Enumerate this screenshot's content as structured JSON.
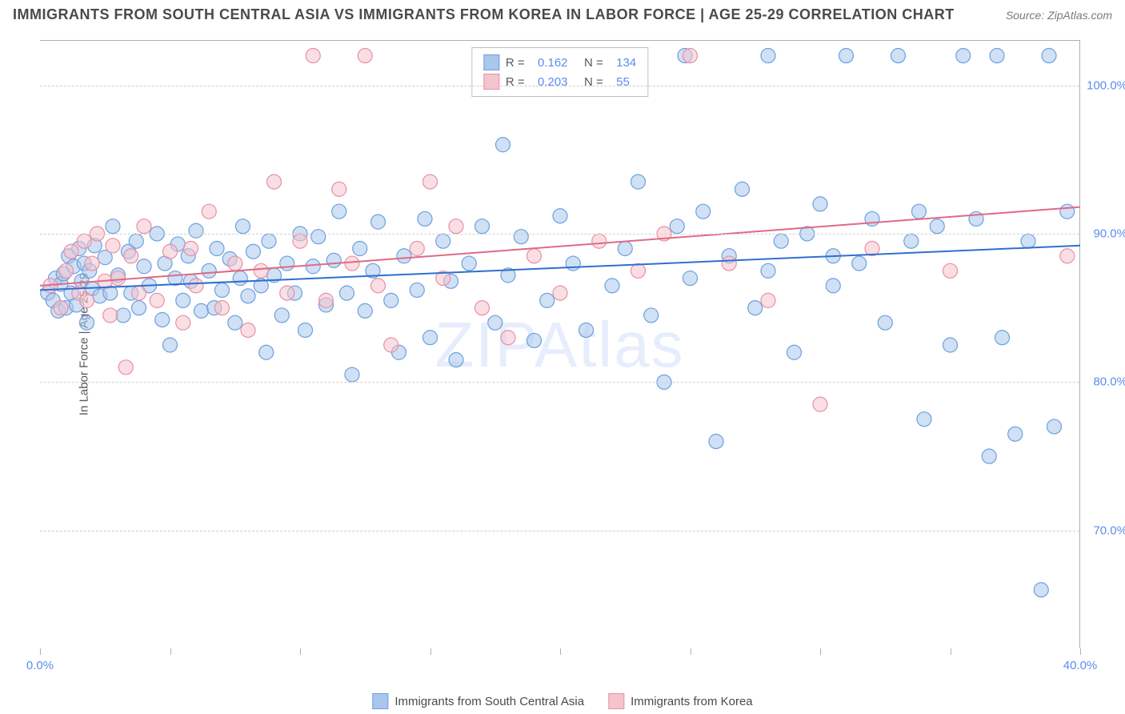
{
  "title": "IMMIGRANTS FROM SOUTH CENTRAL ASIA VS IMMIGRANTS FROM KOREA IN LABOR FORCE | AGE 25-29 CORRELATION CHART",
  "source": "Source: ZipAtlas.com",
  "watermark": "ZIPAtlas",
  "y_axis_label": "In Labor Force | Age 25-29",
  "chart": {
    "type": "scatter",
    "background_color": "#ffffff",
    "grid_color": "#d0d0d0",
    "border_color": "#b0b0b0",
    "xlim": [
      0,
      40
    ],
    "ylim": [
      62,
      103
    ],
    "x_ticks": [
      0,
      5,
      10,
      15,
      20,
      25,
      30,
      35,
      40
    ],
    "x_tick_labels": {
      "0": "0.0%",
      "40": "40.0%"
    },
    "y_ticks": [
      70,
      80,
      90,
      100
    ],
    "y_tick_labels": {
      "70": "70.0%",
      "80": "80.0%",
      "90": "90.0%",
      "100": "100.0%"
    },
    "marker_radius": 9,
    "marker_opacity": 0.55,
    "marker_stroke_width": 1.2,
    "line_width": 2,
    "series": [
      {
        "name": "Immigrants from South Central Asia",
        "color_fill": "#a9c6ec",
        "color_stroke": "#6da0de",
        "line_color": "#2f6fd0",
        "R": "0.162",
        "N": "134",
        "trend": {
          "x1": 0,
          "y1": 86.2,
          "x2": 40,
          "y2": 89.2
        },
        "points": [
          [
            0.3,
            86.0
          ],
          [
            0.5,
            85.5
          ],
          [
            0.6,
            87.0
          ],
          [
            0.7,
            84.8
          ],
          [
            0.8,
            86.6
          ],
          [
            0.9,
            87.3
          ],
          [
            1.0,
            85.0
          ],
          [
            1.1,
            88.5
          ],
          [
            1.2,
            86.0
          ],
          [
            1.3,
            87.8
          ],
          [
            1.4,
            85.2
          ],
          [
            1.5,
            89.0
          ],
          [
            1.6,
            86.8
          ],
          [
            1.7,
            88.0
          ],
          [
            1.8,
            84.0
          ],
          [
            1.9,
            87.5
          ],
          [
            2.0,
            86.3
          ],
          [
            2.1,
            89.2
          ],
          [
            2.3,
            85.8
          ],
          [
            2.5,
            88.4
          ],
          [
            2.7,
            86.0
          ],
          [
            2.8,
            90.5
          ],
          [
            3.0,
            87.2
          ],
          [
            3.2,
            84.5
          ],
          [
            3.4,
            88.8
          ],
          [
            3.5,
            86.0
          ],
          [
            3.7,
            89.5
          ],
          [
            3.8,
            85.0
          ],
          [
            4.0,
            87.8
          ],
          [
            4.2,
            86.5
          ],
          [
            4.5,
            90.0
          ],
          [
            4.7,
            84.2
          ],
          [
            4.8,
            88.0
          ],
          [
            5.0,
            82.5
          ],
          [
            5.2,
            87.0
          ],
          [
            5.3,
            89.3
          ],
          [
            5.5,
            85.5
          ],
          [
            5.7,
            88.5
          ],
          [
            5.8,
            86.8
          ],
          [
            6.0,
            90.2
          ],
          [
            6.2,
            84.8
          ],
          [
            6.5,
            87.5
          ],
          [
            6.7,
            85.0
          ],
          [
            6.8,
            89.0
          ],
          [
            7.0,
            86.2
          ],
          [
            7.3,
            88.3
          ],
          [
            7.5,
            84.0
          ],
          [
            7.7,
            87.0
          ],
          [
            7.8,
            90.5
          ],
          [
            8.0,
            85.8
          ],
          [
            8.2,
            88.8
          ],
          [
            8.5,
            86.5
          ],
          [
            8.7,
            82.0
          ],
          [
            8.8,
            89.5
          ],
          [
            9.0,
            87.2
          ],
          [
            9.3,
            84.5
          ],
          [
            9.5,
            88.0
          ],
          [
            9.8,
            86.0
          ],
          [
            10.0,
            90.0
          ],
          [
            10.2,
            83.5
          ],
          [
            10.5,
            87.8
          ],
          [
            10.7,
            89.8
          ],
          [
            11.0,
            85.2
          ],
          [
            11.3,
            88.2
          ],
          [
            11.5,
            91.5
          ],
          [
            11.8,
            86.0
          ],
          [
            12.0,
            80.5
          ],
          [
            12.3,
            89.0
          ],
          [
            12.5,
            84.8
          ],
          [
            12.8,
            87.5
          ],
          [
            13.0,
            90.8
          ],
          [
            13.5,
            85.5
          ],
          [
            13.8,
            82.0
          ],
          [
            14.0,
            88.5
          ],
          [
            14.5,
            86.2
          ],
          [
            14.8,
            91.0
          ],
          [
            15.0,
            83.0
          ],
          [
            15.5,
            89.5
          ],
          [
            15.8,
            86.8
          ],
          [
            16.0,
            81.5
          ],
          [
            16.5,
            88.0
          ],
          [
            17.0,
            90.5
          ],
          [
            17.5,
            84.0
          ],
          [
            17.8,
            96.0
          ],
          [
            18.0,
            87.2
          ],
          [
            18.5,
            89.8
          ],
          [
            19.0,
            82.8
          ],
          [
            19.5,
            85.5
          ],
          [
            20.0,
            91.2
          ],
          [
            20.5,
            88.0
          ],
          [
            21.0,
            83.5
          ],
          [
            21.5,
            102.0
          ],
          [
            22.0,
            86.5
          ],
          [
            22.5,
            89.0
          ],
          [
            23.0,
            93.5
          ],
          [
            23.5,
            84.5
          ],
          [
            24.0,
            80.0
          ],
          [
            24.5,
            90.5
          ],
          [
            24.8,
            102.0
          ],
          [
            25.0,
            87.0
          ],
          [
            25.5,
            91.5
          ],
          [
            26.0,
            76.0
          ],
          [
            26.5,
            88.5
          ],
          [
            27.0,
            93.0
          ],
          [
            27.5,
            85.0
          ],
          [
            28.0,
            102.0
          ],
          [
            28.5,
            89.5
          ],
          [
            29.0,
            82.0
          ],
          [
            29.5,
            90.0
          ],
          [
            30.0,
            92.0
          ],
          [
            30.5,
            86.5
          ],
          [
            31.0,
            102.0
          ],
          [
            31.5,
            88.0
          ],
          [
            32.0,
            91.0
          ],
          [
            32.5,
            84.0
          ],
          [
            33.0,
            102.0
          ],
          [
            33.5,
            89.5
          ],
          [
            34.0,
            77.5
          ],
          [
            34.5,
            90.5
          ],
          [
            35.0,
            82.5
          ],
          [
            35.5,
            102.0
          ],
          [
            36.0,
            91.0
          ],
          [
            36.5,
            75.0
          ],
          [
            36.8,
            102.0
          ],
          [
            37.0,
            83.0
          ],
          [
            37.5,
            76.5
          ],
          [
            38.0,
            89.5
          ],
          [
            38.5,
            66.0
          ],
          [
            38.8,
            102.0
          ],
          [
            39.0,
            77.0
          ],
          [
            39.5,
            91.5
          ],
          [
            33.8,
            91.5
          ],
          [
            30.5,
            88.5
          ],
          [
            28.0,
            87.5
          ]
        ]
      },
      {
        "name": "Immigrants from Korea",
        "color_fill": "#f4c5ce",
        "color_stroke": "#ea8fa3",
        "line_color": "#e06a85",
        "R": "0.203",
        "N": "55",
        "trend": {
          "x1": 0,
          "y1": 86.5,
          "x2": 40,
          "y2": 91.8
        },
        "points": [
          [
            0.4,
            86.5
          ],
          [
            0.8,
            85.0
          ],
          [
            1.0,
            87.5
          ],
          [
            1.2,
            88.8
          ],
          [
            1.5,
            86.0
          ],
          [
            1.7,
            89.5
          ],
          [
            1.8,
            85.5
          ],
          [
            2.0,
            88.0
          ],
          [
            2.2,
            90.0
          ],
          [
            2.5,
            86.8
          ],
          [
            2.7,
            84.5
          ],
          [
            2.8,
            89.2
          ],
          [
            3.0,
            87.0
          ],
          [
            3.3,
            81.0
          ],
          [
            3.5,
            88.5
          ],
          [
            3.8,
            86.0
          ],
          [
            4.0,
            90.5
          ],
          [
            4.5,
            85.5
          ],
          [
            5.0,
            88.8
          ],
          [
            5.5,
            84.0
          ],
          [
            5.8,
            89.0
          ],
          [
            6.0,
            86.5
          ],
          [
            6.5,
            91.5
          ],
          [
            7.0,
            85.0
          ],
          [
            7.5,
            88.0
          ],
          [
            8.0,
            83.5
          ],
          [
            8.5,
            87.5
          ],
          [
            9.0,
            93.5
          ],
          [
            9.5,
            86.0
          ],
          [
            10.0,
            89.5
          ],
          [
            10.5,
            102.0
          ],
          [
            11.0,
            85.5
          ],
          [
            11.5,
            93.0
          ],
          [
            12.0,
            88.0
          ],
          [
            12.5,
            102.0
          ],
          [
            13.0,
            86.5
          ],
          [
            13.5,
            82.5
          ],
          [
            14.5,
            89.0
          ],
          [
            15.0,
            93.5
          ],
          [
            15.5,
            87.0
          ],
          [
            16.0,
            90.5
          ],
          [
            17.0,
            85.0
          ],
          [
            18.0,
            83.0
          ],
          [
            19.0,
            88.5
          ],
          [
            20.0,
            86.0
          ],
          [
            21.5,
            89.5
          ],
          [
            23.0,
            87.5
          ],
          [
            24.0,
            90.0
          ],
          [
            25.0,
            102.0
          ],
          [
            26.5,
            88.0
          ],
          [
            28.0,
            85.5
          ],
          [
            30.0,
            78.5
          ],
          [
            32.0,
            89.0
          ],
          [
            35.0,
            87.5
          ],
          [
            39.5,
            88.5
          ]
        ]
      }
    ]
  },
  "legend_top": {
    "rows": [
      {
        "swatch_fill": "#a9c6ec",
        "swatch_stroke": "#6da0de",
        "r_label": "R =",
        "r_val": "0.162",
        "n_label": "N =",
        "n_val": "134"
      },
      {
        "swatch_fill": "#f4c5ce",
        "swatch_stroke": "#ea8fa3",
        "r_label": "R =",
        "r_val": "0.203",
        "n_label": "N =",
        "n_val": "55"
      }
    ]
  },
  "legend_bottom": {
    "items": [
      {
        "swatch_fill": "#a9c6ec",
        "swatch_stroke": "#6da0de",
        "label": "Immigrants from South Central Asia"
      },
      {
        "swatch_fill": "#f4c5ce",
        "swatch_stroke": "#ea8fa3",
        "label": "Immigrants from Korea"
      }
    ]
  }
}
